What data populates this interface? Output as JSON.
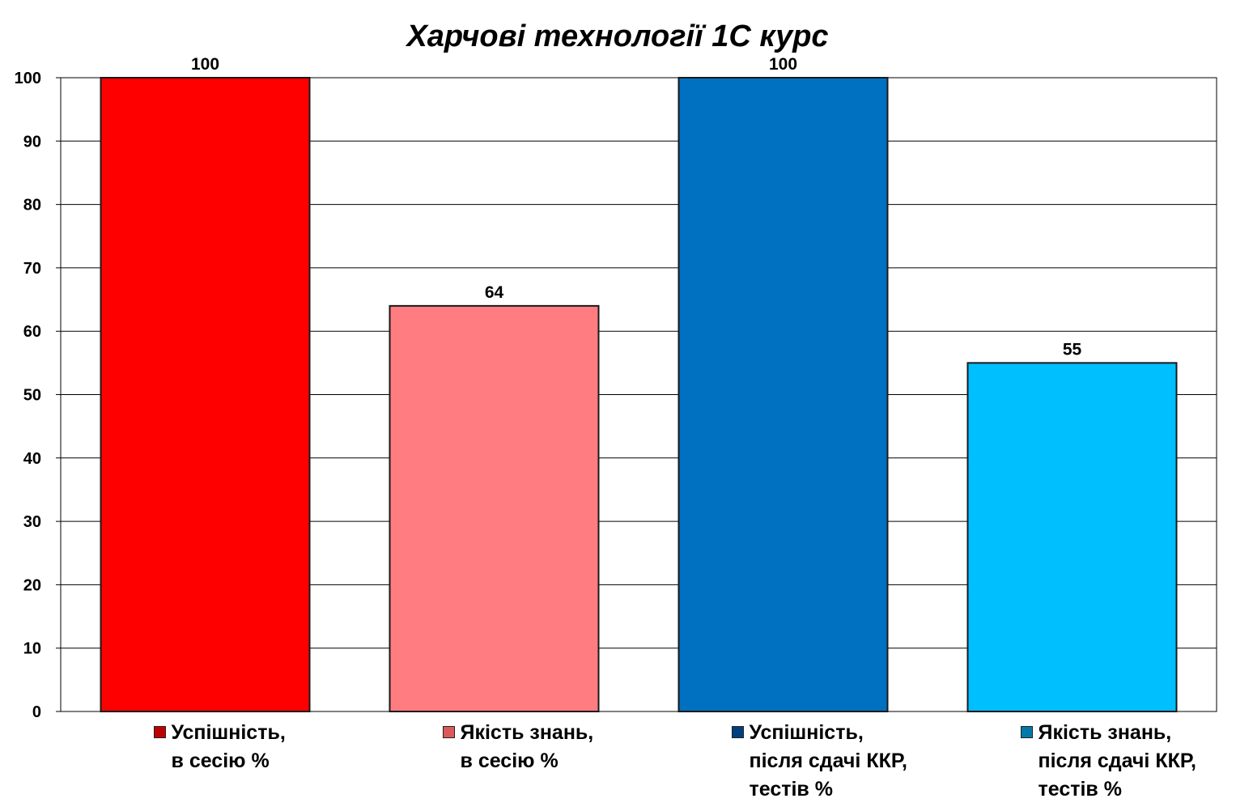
{
  "chart_data": {
    "type": "bar",
    "title": "Харчові технології 1С курс",
    "categories": [
      "Успішність,\nв сесію %",
      "Якість знань,\nв сесію %",
      "Успішність,\nпісля сдачі ККР,\nтестів %",
      "Якість знань,\nпісля сдачі ККР,\nтестів %"
    ],
    "values": [
      100,
      64,
      100,
      55
    ],
    "data_labels": [
      "100",
      "64",
      "100",
      "55"
    ],
    "colors": [
      "#ff0000",
      "#ff7c80",
      "#0070c0",
      "#00bfff"
    ],
    "swatch_colors": [
      "#c00000",
      "#d9595c",
      "#003f7f",
      "#0079a8"
    ],
    "ylim": [
      0,
      100
    ],
    "y_ticks": [
      "0",
      "10",
      "20",
      "30",
      "40",
      "50",
      "60",
      "70",
      "80",
      "90",
      "100"
    ],
    "grid": true,
    "legend_position": "bottom",
    "xlabel": "",
    "ylabel": ""
  }
}
